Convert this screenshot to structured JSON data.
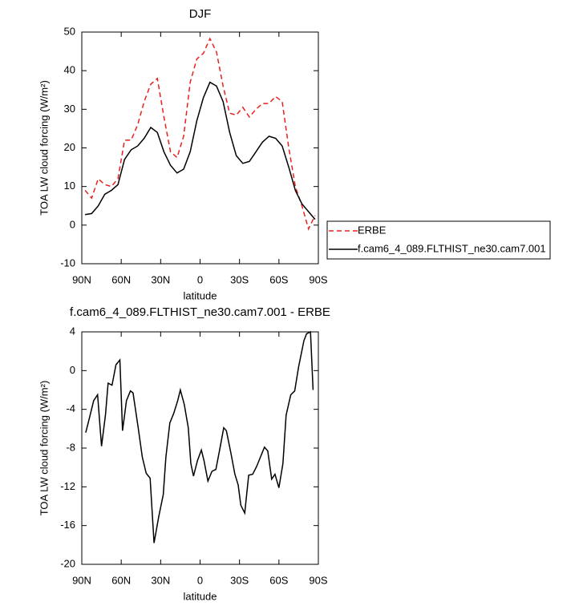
{
  "chart_data": [
    {
      "type": "line",
      "title": "DJF",
      "xlabel": "latitude",
      "ylabel": "TOA LW cloud forcing (W/m²)",
      "x": [
        87.5,
        82.5,
        77.5,
        72.5,
        67.5,
        62.5,
        57.5,
        52.5,
        47.5,
        42.5,
        37.5,
        32.5,
        27.5,
        22.5,
        17.5,
        12.5,
        7.5,
        2.5,
        -2.5,
        -7.5,
        -12.5,
        -17.5,
        -22.5,
        -27.5,
        -32.5,
        -37.5,
        -42.5,
        -47.5,
        -52.5,
        -57.5,
        -62.5,
        -67.5,
        -72.5,
        -77.5,
        -82.5,
        -87.5
      ],
      "series": [
        {
          "name": "ERBE",
          "color": "#e8201e",
          "dashed": true,
          "values": [
            9.0,
            7.0,
            12,
            10.5,
            10,
            12,
            22,
            22,
            26,
            32,
            36.5,
            38,
            28,
            19,
            17.5,
            23,
            37,
            43,
            44.5,
            48.3,
            44.8,
            36,
            29,
            28.5,
            30.5,
            28,
            30,
            31.5,
            31.5,
            33.3,
            32,
            20,
            10,
            5,
            -1,
            2.5
          ]
        },
        {
          "name": "f.cam6_4_089.FLTHIST_ne30.cam7.001",
          "color": "#000000",
          "dashed": false,
          "values": [
            2.7,
            3,
            5,
            8,
            9,
            10.5,
            17,
            19.5,
            20.5,
            22.5,
            25.3,
            24,
            19,
            15.5,
            13.5,
            14.5,
            19,
            27,
            33,
            37,
            36,
            32,
            24,
            18,
            16,
            16.5,
            19,
            21.5,
            23,
            22.5,
            20.5,
            15,
            9,
            5.5,
            3.5,
            1.5
          ]
        }
      ],
      "xlim": [
        90,
        -90
      ],
      "xticks": [
        {
          "value": 90,
          "label": "90N"
        },
        {
          "value": 60,
          "label": "60N"
        },
        {
          "value": 30,
          "label": "30N"
        },
        0,
        {
          "value": -30,
          "label": "30S"
        },
        {
          "value": -60,
          "label": "60S"
        },
        {
          "value": -90,
          "label": "90S"
        }
      ],
      "ylim": [
        -10,
        50
      ],
      "yticks": [
        -10,
        0,
        10,
        20,
        30,
        40,
        50
      ]
    },
    {
      "type": "line",
      "title": "f.cam6_4_089.FLTHIST_ne30.cam7.001 - ERBE",
      "xlabel": "latitude",
      "ylabel": "TOA LW cloud forcing (W/m²)",
      "x": [
        87,
        84,
        81,
        78,
        75,
        72,
        70,
        67,
        64,
        61,
        59,
        56,
        53,
        51,
        47,
        44,
        41,
        38,
        35,
        31.5,
        28,
        26,
        23,
        20,
        17,
        15,
        12,
        9,
        7,
        5,
        2,
        -1,
        -3,
        -6,
        -9,
        -12,
        -15,
        -18,
        -20,
        -23.4,
        -26.5,
        -29,
        -31,
        -34,
        -37,
        -40,
        -43,
        -46,
        -49,
        -51.5,
        -54.5,
        -57,
        -60,
        -63,
        -65.5,
        -69,
        -72,
        -75,
        -79,
        -81,
        -84,
        -86
      ],
      "values": [
        -6.4,
        -4.8,
        -3.1,
        -2.5,
        -7.8,
        -4.6,
        -1.3,
        -1.5,
        0.6,
        1.1,
        -6.2,
        -3.1,
        -2.1,
        -2.3,
        -6,
        -8.9,
        -10.6,
        -11.1,
        -17.8,
        -15.1,
        -12.8,
        -8.9,
        -5.4,
        -4.4,
        -3.1,
        -2.0,
        -3.5,
        -5.9,
        -9.6,
        -10.9,
        -9.3,
        -8.2,
        -9.3,
        -11.4,
        -10.4,
        -10.2,
        -8.1,
        -5.9,
        -6.2,
        -8.5,
        -10.7,
        -11.8,
        -13.9,
        -14.7,
        -10.8,
        -10.7,
        -9.9,
        -8.9,
        -7.9,
        -8.3,
        -11.2,
        -10.7,
        -12.1,
        -9.6,
        -4.6,
        -2.5,
        -2.1,
        0.4,
        3.1,
        3.8,
        4.0,
        -2.0
      ],
      "color": "#000000",
      "xlim": [
        90,
        -90
      ],
      "xticks": [
        {
          "value": 90,
          "label": "90N"
        },
        {
          "value": 60,
          "label": "60N"
        },
        {
          "value": 30,
          "label": "30N"
        },
        0,
        {
          "value": -30,
          "label": "30S"
        },
        {
          "value": -60,
          "label": "60S"
        },
        {
          "value": -90,
          "label": "90S"
        }
      ],
      "ylim": [
        -20,
        4
      ],
      "yticks": [
        -20,
        -16,
        -12,
        -8,
        -4,
        0,
        4
      ]
    }
  ]
}
